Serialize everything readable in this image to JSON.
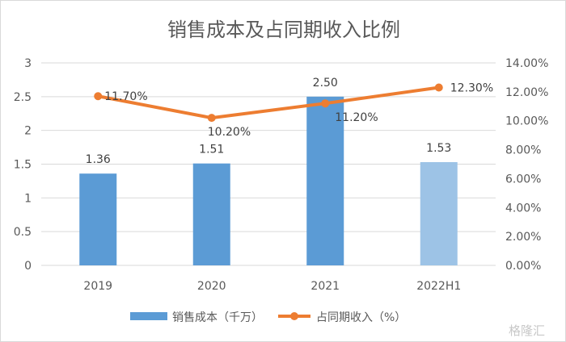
{
  "chart_data": {
    "type": "bar+line",
    "title": "销售成本及占同期收入比例",
    "categories": [
      "2019",
      "2020",
      "2021",
      "2022H1"
    ],
    "series": [
      {
        "name": "销售成本（千万）",
        "type": "bar",
        "axis": "left",
        "values": [
          1.36,
          1.51,
          2.5,
          1.53
        ],
        "labels": [
          "1.36",
          "1.51",
          "2.50",
          "1.53"
        ],
        "color": "#5b9bd5",
        "highlight_last_color": "#9dc3e6"
      },
      {
        "name": "占同期收入（%）",
        "type": "line",
        "axis": "right",
        "values": [
          11.7,
          10.2,
          11.2,
          12.3
        ],
        "labels": [
          "11.70%",
          "10.20%",
          "11.20%",
          "12.30%"
        ],
        "color": "#ed7d31"
      }
    ],
    "y_left": {
      "range": [
        0,
        3
      ],
      "ticks": [
        "0",
        "0.5",
        "1",
        "1.5",
        "2",
        "2.5",
        "3"
      ]
    },
    "y_right": {
      "range": [
        0,
        14
      ],
      "ticks": [
        "0.00%",
        "2.00%",
        "4.00%",
        "6.00%",
        "8.00%",
        "10.00%",
        "12.00%",
        "14.00%"
      ]
    },
    "grid": true,
    "legend": "bottom"
  },
  "watermark": "格隆汇"
}
